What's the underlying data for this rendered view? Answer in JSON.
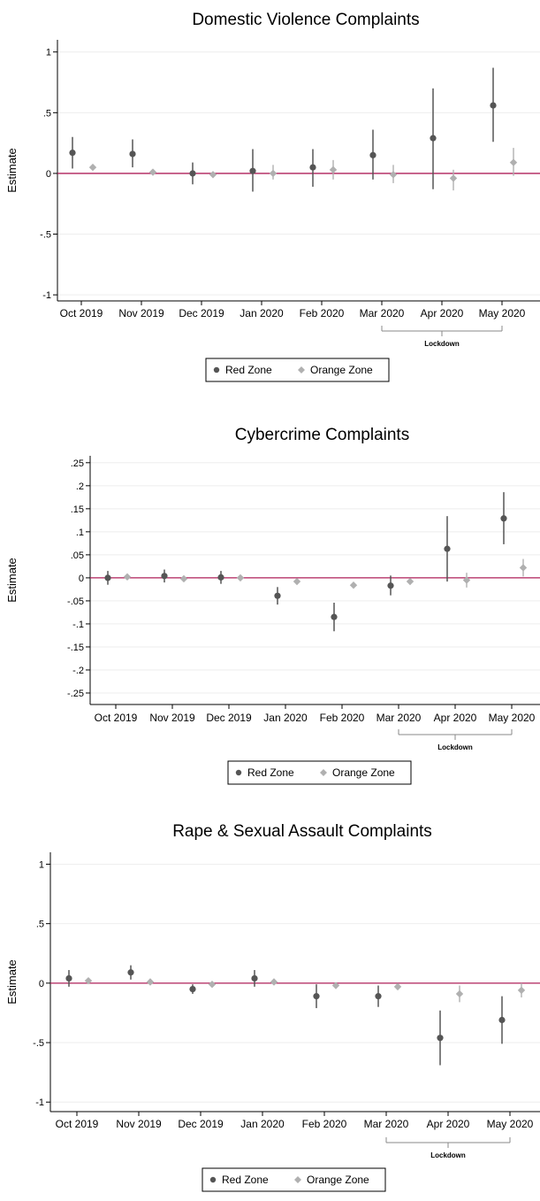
{
  "colors": {
    "red_zone": "#555555",
    "orange_zone": "#b0b0b0",
    "zero_line": "#b0205a",
    "axis": "#000000",
    "grid": "#eeeeee",
    "bracket": "#888888"
  },
  "legend": {
    "red_label": "Red Zone",
    "orange_label": "Orange Zone"
  },
  "chart_data": [
    {
      "type": "scatter",
      "title": "Domestic Violence Complaints",
      "ylabel": "Estimate",
      "xlabel": "",
      "ylim": [
        -1.05,
        1.1
      ],
      "yticks": [
        1,
        0.5,
        0,
        -0.5,
        -1
      ],
      "ytick_labels": [
        "1",
        ".5",
        "0",
        "-.5",
        "-1"
      ],
      "categories": [
        "Oct 2019",
        "Nov 2019",
        "Dec 2019",
        "Jan 2020",
        "Feb 2020",
        "Mar 2020",
        "Apr 2020",
        "May 2020"
      ],
      "grid": true,
      "reference_line": 0,
      "bracket": {
        "label": "Lockdown",
        "from_category": 5,
        "to_category": 7
      },
      "legend_position": "bottom",
      "series": [
        {
          "name": "Red Zone",
          "marker": "circle",
          "values": [
            0.17,
            0.16,
            0.0,
            0.02,
            0.05,
            0.15,
            0.29,
            0.56
          ],
          "ci_low": [
            0.04,
            0.05,
            -0.09,
            -0.15,
            -0.11,
            -0.05,
            -0.13,
            0.26
          ],
          "ci_high": [
            0.3,
            0.28,
            0.09,
            0.2,
            0.2,
            0.36,
            0.7,
            0.87
          ]
        },
        {
          "name": "Orange Zone",
          "marker": "diamond",
          "values": [
            0.05,
            0.01,
            -0.01,
            0.0,
            0.03,
            -0.01,
            -0.04,
            0.09
          ],
          "ci_low": [
            0.03,
            -0.01,
            -0.03,
            -0.05,
            -0.05,
            -0.08,
            -0.14,
            -0.02
          ],
          "ci_high": [
            0.07,
            0.03,
            0.01,
            0.07,
            0.11,
            0.07,
            0.03,
            0.21
          ]
        }
      ]
    },
    {
      "type": "scatter",
      "title": "Cybercrime Complaints",
      "ylabel": "Estimate",
      "xlabel": "",
      "ylim": [
        -0.275,
        0.265
      ],
      "yticks": [
        0.25,
        0.2,
        0.15,
        0.1,
        0.05,
        0,
        -0.05,
        -0.1,
        -0.15,
        -0.2,
        -0.25
      ],
      "ytick_labels": [
        ".25",
        ".2",
        ".15",
        ".1",
        ".05",
        "0",
        "-.05",
        "-.1",
        "-.15",
        "-.2",
        "-.25"
      ],
      "categories": [
        "Oct 2019",
        "Nov 2019",
        "Dec 2019",
        "Jan 2020",
        "Feb 2020",
        "Mar 2020",
        "Apr 2020",
        "May 2020"
      ],
      "grid": true,
      "reference_line": 0,
      "bracket": {
        "label": "Lockdown",
        "from_category": 5,
        "to_category": 7
      },
      "legend_position": "bottom",
      "series": [
        {
          "name": "Red Zone",
          "marker": "circle",
          "values": [
            0.0,
            0.004,
            0.001,
            -0.039,
            -0.085,
            -0.017,
            0.063,
            0.129
          ],
          "ci_low": [
            -0.015,
            -0.01,
            -0.013,
            -0.058,
            -0.116,
            -0.038,
            -0.008,
            0.073
          ],
          "ci_high": [
            0.015,
            0.018,
            0.015,
            -0.02,
            -0.054,
            0.005,
            0.134,
            0.186
          ]
        },
        {
          "name": "Orange Zone",
          "marker": "diamond",
          "values": [
            0.002,
            -0.002,
            0.0,
            -0.008,
            -0.016,
            -0.008,
            -0.005,
            0.022
          ],
          "ci_low": [
            -0.004,
            -0.006,
            -0.004,
            -0.013,
            -0.022,
            -0.013,
            -0.021,
            0.003
          ],
          "ci_high": [
            0.008,
            0.002,
            0.004,
            -0.003,
            -0.01,
            -0.003,
            0.011,
            0.041
          ]
        }
      ]
    },
    {
      "type": "scatter",
      "title": "Rape & Sexual Assault Complaints",
      "ylabel": "Estimate",
      "xlabel": "",
      "ylim": [
        -1.08,
        1.1
      ],
      "yticks": [
        1,
        0.5,
        0,
        -0.5,
        -1
      ],
      "ytick_labels": [
        "1",
        ".5",
        "0",
        "-.5",
        "-1"
      ],
      "categories": [
        "Oct 2019",
        "Nov 2019",
        "Dec 2019",
        "Jan 2020",
        "Feb 2020",
        "Mar 2020",
        "Apr 2020",
        "May 2020"
      ],
      "grid": true,
      "reference_line": 0,
      "bracket": {
        "label": "Lockdown",
        "from_category": 5,
        "to_category": 7
      },
      "legend_position": "bottom",
      "series": [
        {
          "name": "Red Zone",
          "marker": "circle",
          "values": [
            0.04,
            0.09,
            -0.05,
            0.04,
            -0.11,
            -0.11,
            -0.46,
            -0.31
          ],
          "ci_low": [
            -0.03,
            0.03,
            -0.09,
            -0.03,
            -0.21,
            -0.2,
            -0.69,
            -0.51
          ],
          "ci_high": [
            0.11,
            0.15,
            -0.01,
            0.11,
            -0.01,
            -0.02,
            -0.23,
            -0.11
          ]
        },
        {
          "name": "Orange Zone",
          "marker": "diamond",
          "values": [
            0.02,
            0.01,
            -0.01,
            0.01,
            -0.02,
            -0.03,
            -0.09,
            -0.06
          ],
          "ci_low": [
            0.0,
            -0.01,
            -0.03,
            -0.01,
            -0.04,
            -0.05,
            -0.16,
            -0.12
          ],
          "ci_high": [
            0.04,
            0.03,
            0.01,
            0.03,
            0.0,
            -0.01,
            -0.02,
            0.0
          ]
        }
      ]
    }
  ]
}
